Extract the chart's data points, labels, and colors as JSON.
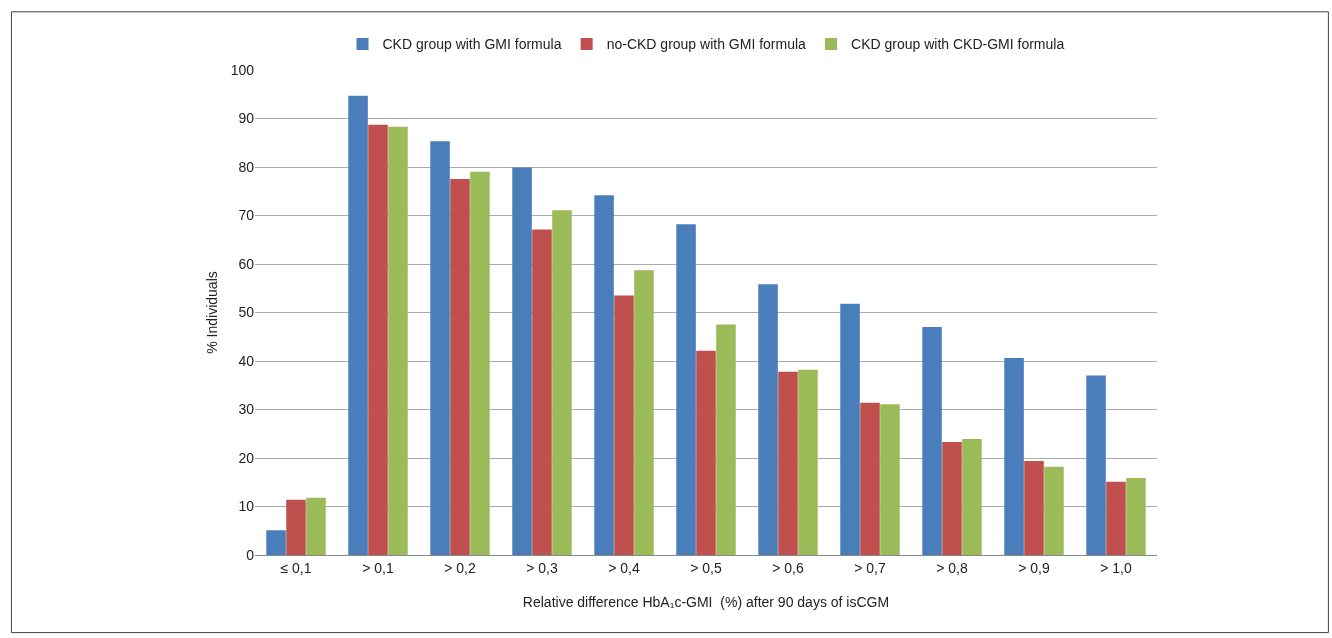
{
  "chart_data": {
    "type": "bar",
    "xlabel": "Relative difference HbA₁c-GMI  (%) after 90 days of isCGM",
    "ylabel": "% Individuals",
    "categories": [
      "≤ 0,1",
      "> 0,1",
      "> 0,2",
      "> 0,3",
      "> 0,4",
      "> 0,5",
      "> 0,6",
      "> 0,7",
      "> 0,8",
      "> 0,9",
      "> 1,0"
    ],
    "series": [
      {
        "name": "CKD group with GMI formula",
        "color": "#4a7ebb",
        "values": [
          5.1,
          94.7,
          85.3,
          79.9,
          74.2,
          68.2,
          55.8,
          51.8,
          47,
          40.6,
          37
        ]
      },
      {
        "name": "no-CKD group with GMI formula",
        "color": "#c0504d",
        "values": [
          11.4,
          88.7,
          77.5,
          67.1,
          53.5,
          42.1,
          37.8,
          31.4,
          23.3,
          19.4,
          15.1
        ]
      },
      {
        "name": "CKD group with CKD-GMI formula",
        "color": "#9bbb59",
        "values": [
          11.8,
          88.3,
          79,
          71.1,
          58.7,
          47.5,
          38.2,
          31.1,
          23.9,
          18.2,
          15.9
        ]
      }
    ],
    "ylim": [
      0,
      100
    ],
    "yticks": [
      0,
      10,
      20,
      30,
      40,
      50,
      60,
      70,
      80,
      90,
      100
    ],
    "grid": "y",
    "legend": "top"
  }
}
